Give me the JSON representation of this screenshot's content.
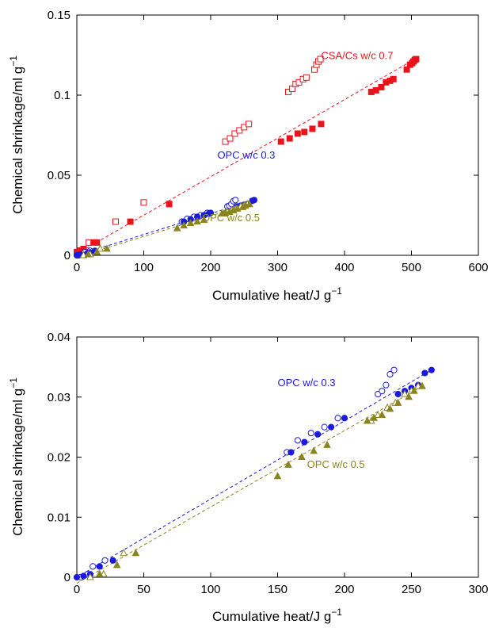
{
  "colors": {
    "csa": "#e8141b",
    "opc03": "#1a1adf",
    "opc05": "#8a8420"
  },
  "chart_data": [
    {
      "type": "scatter",
      "xlabel_main": "Cumulative heat/J g",
      "xlabel_sup": "−1",
      "ylabel_main": "Chemical shrinkage/ml g",
      "ylabel_sup": "−1",
      "xlim": [
        0,
        600
      ],
      "ylim": [
        0,
        0.15
      ],
      "xticks": [
        0,
        100,
        200,
        300,
        400,
        500,
        600
      ],
      "yticks": [
        0,
        0.05,
        0.1,
        0.15
      ],
      "xtick_labels": [
        "0",
        "100",
        "200",
        "300",
        "400",
        "500",
        "600"
      ],
      "ytick_labels": [
        "0",
        "0.05",
        "0.1",
        "0.15"
      ],
      "grid": false,
      "series": [
        {
          "name": "CSA/Cs w/c 0.7",
          "color_key": "csa",
          "label_at": [
            365,
            0.1225
          ],
          "fit": [
            [
              0,
              0.001
            ],
            [
              505,
              0.1225
            ]
          ],
          "filled": [
            [
              0,
              0.002
            ],
            [
              5,
              0.003
            ],
            [
              10,
              0.004
            ],
            [
              25,
              0.008
            ],
            [
              30,
              0.008
            ],
            [
              80,
              0.021
            ],
            [
              138,
              0.032
            ],
            [
              305,
              0.071
            ],
            [
              318,
              0.073
            ],
            [
              330,
              0.076
            ],
            [
              340,
              0.077
            ],
            [
              352,
              0.079
            ],
            [
              365,
              0.082
            ],
            [
              440,
              0.102
            ],
            [
              447,
              0.103
            ],
            [
              455,
              0.105
            ],
            [
              462,
              0.108
            ],
            [
              468,
              0.109
            ],
            [
              473,
              0.11
            ],
            [
              493,
              0.116
            ],
            [
              498,
              0.119
            ],
            [
              501,
              0.12
            ],
            [
              503,
              0.121
            ],
            [
              505,
              0.122
            ],
            [
              507,
              0.1225
            ]
          ],
          "open": [
            [
              12,
              0.002
            ],
            [
              18,
              0.008
            ],
            [
              58,
              0.021
            ],
            [
              100,
              0.033
            ],
            [
              222,
              0.071
            ],
            [
              229,
              0.073
            ],
            [
              236,
              0.076
            ],
            [
              243,
              0.078
            ],
            [
              250,
              0.08
            ],
            [
              257,
              0.082
            ],
            [
              316,
              0.102
            ],
            [
              322,
              0.104
            ],
            [
              327,
              0.107
            ],
            [
              332,
              0.108
            ],
            [
              338,
              0.11
            ],
            [
              343,
              0.111
            ],
            [
              355,
              0.116
            ],
            [
              358,
              0.119
            ],
            [
              361,
              0.121
            ],
            [
              364,
              0.1225
            ]
          ]
        },
        {
          "name": "OPC w/c 0.3",
          "color_key": "opc03",
          "label_at": [
            210,
            0.0605
          ],
          "fit": [
            [
              0,
              0
            ],
            [
              265,
              0.0345
            ]
          ],
          "filled": [
            [
              0,
              0
            ],
            [
              5,
              0.0005
            ],
            [
              15,
              0.001
            ],
            [
              20,
              0.0018
            ],
            [
              27,
              0.0028
            ],
            [
              160,
              0.021
            ],
            [
              170,
              0.0225
            ],
            [
              180,
              0.024
            ],
            [
              190,
              0.025
            ],
            [
              197,
              0.026
            ],
            [
              200,
              0.0265
            ],
            [
              240,
              0.0305
            ],
            [
              245,
              0.031
            ],
            [
              250,
              0.0315
            ],
            [
              255,
              0.032
            ],
            [
              262,
              0.034
            ],
            [
              265,
              0.0345
            ]
          ],
          "open": [
            [
              3,
              0
            ],
            [
              10,
              0.001
            ],
            [
              12,
              0.0019
            ],
            [
              20,
              0.0028
            ],
            [
              157,
              0.021
            ],
            [
              165,
              0.0228
            ],
            [
              175,
              0.024
            ],
            [
              185,
              0.025
            ],
            [
              195,
              0.0265
            ],
            [
              225,
              0.0305
            ],
            [
              228,
              0.031
            ],
            [
              231,
              0.032
            ],
            [
              234,
              0.0338
            ],
            [
              237,
              0.0345
            ]
          ]
        },
        {
          "name": "OPC w/c 0.5",
          "color_key": "opc05",
          "label_at": [
            187,
            0.0212
          ],
          "fit": [
            [
              0,
              -0.001
            ],
            [
              258,
              0.032
            ]
          ],
          "filled": [
            [
              17,
              0.0005
            ],
            [
              30,
              0.002
            ],
            [
              45,
              0.004
            ],
            [
              150,
              0.0168
            ],
            [
              160,
              0.0185
            ],
            [
              170,
              0.02
            ],
            [
              180,
              0.021
            ],
            [
              190,
              0.022
            ],
            [
              217,
              0.026
            ],
            [
              222,
              0.0265
            ],
            [
              228,
              0.027
            ],
            [
              234,
              0.028
            ],
            [
              240,
              0.029
            ],
            [
              248,
              0.03
            ],
            [
              252,
              0.031
            ],
            [
              258,
              0.0318
            ]
          ],
          "open": [
            [
              10,
              0
            ],
            [
              20,
              0.0005
            ],
            [
              35,
              0.004
            ],
            [
              220,
              0.026
            ],
            [
              225,
              0.027
            ],
            [
              232,
              0.0282
            ],
            [
              238,
              0.029
            ],
            [
              245,
              0.0305
            ],
            [
              250,
              0.031
            ],
            [
              255,
              0.0318
            ]
          ]
        }
      ]
    },
    {
      "type": "scatter",
      "xlabel_main": "Cumulative heat/J g",
      "xlabel_sup": "−1",
      "ylabel_main": "Chemical shrinkage/ml g",
      "ylabel_sup": "−1",
      "xlim": [
        0,
        300
      ],
      "ylim": [
        0,
        0.04
      ],
      "xticks": [
        0,
        50,
        100,
        150,
        200,
        250,
        300
      ],
      "yticks": [
        0,
        0.01,
        0.02,
        0.03,
        0.04
      ],
      "xtick_labels": [
        "0",
        "50",
        "100",
        "150",
        "200",
        "250",
        "300"
      ],
      "ytick_labels": [
        "0",
        "0.01",
        "0.02",
        "0.03",
        "0.04"
      ],
      "grid": false,
      "series": [
        {
          "name": "OPC w/c 0.3",
          "color_key": "opc03",
          "label_at": [
            150,
            0.0318
          ],
          "fit": [
            [
              0,
              0
            ],
            [
              265,
              0.0345
            ]
          ],
          "filled": [
            [
              0,
              0
            ],
            [
              5,
              0.0002
            ],
            [
              10,
              0.0005
            ],
            [
              17,
              0.0018
            ],
            [
              27,
              0.0028
            ],
            [
              160,
              0.0208
            ],
            [
              170,
              0.0225
            ],
            [
              180,
              0.0238
            ],
            [
              190,
              0.025
            ],
            [
              200,
              0.0265
            ],
            [
              240,
              0.0305
            ],
            [
              245,
              0.031
            ],
            [
              250,
              0.0315
            ],
            [
              255,
              0.032
            ],
            [
              260,
              0.034
            ],
            [
              265,
              0.0345
            ]
          ],
          "open": [
            [
              3,
              0
            ],
            [
              8,
              0.0005
            ],
            [
              12,
              0.0018
            ],
            [
              21,
              0.0028
            ],
            [
              157,
              0.0208
            ],
            [
              165,
              0.0228
            ],
            [
              175,
              0.024
            ],
            [
              185,
              0.025
            ],
            [
              195,
              0.0265
            ],
            [
              225,
              0.0305
            ],
            [
              228,
              0.031
            ],
            [
              231,
              0.032
            ],
            [
              234,
              0.0338
            ],
            [
              237,
              0.0345
            ]
          ]
        },
        {
          "name": "OPC w/c 0.5",
          "color_key": "opc05",
          "label_at": [
            172,
            0.0182
          ],
          "fit": [
            [
              0,
              -0.001
            ],
            [
              258,
              0.0318
            ]
          ],
          "filled": [
            [
              17,
              0.0005
            ],
            [
              30,
              0.002
            ],
            [
              44,
              0.004
            ],
            [
              150,
              0.0168
            ],
            [
              158,
              0.0187
            ],
            [
              168,
              0.02
            ],
            [
              177,
              0.021
            ],
            [
              187,
              0.022
            ],
            [
              217,
              0.026
            ],
            [
              222,
              0.0265
            ],
            [
              228,
              0.027
            ],
            [
              234,
              0.028
            ],
            [
              240,
              0.029
            ],
            [
              248,
              0.03
            ],
            [
              252,
              0.031
            ],
            [
              258,
              0.0318
            ]
          ],
          "open": [
            [
              10,
              0
            ],
            [
              20,
              0.0005
            ],
            [
              35,
              0.004
            ],
            [
              220,
              0.026
            ],
            [
              225,
              0.027
            ],
            [
              232,
              0.0282
            ],
            [
              238,
              0.029
            ],
            [
              245,
              0.0305
            ],
            [
              250,
              0.031
            ],
            [
              255,
              0.0318
            ]
          ]
        }
      ]
    }
  ]
}
